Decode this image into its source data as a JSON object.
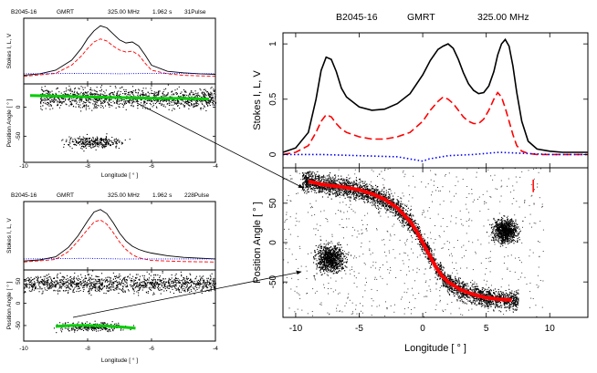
{
  "chart_data": [
    {
      "name": "top-left",
      "type": "line",
      "header": {
        "pulsar": "B2045-16",
        "telescope": "GMRT",
        "freq": "325.00 MHz",
        "period": "1.962 s",
        "pulses": "31Pulse"
      },
      "xlabel": "Longitude [ ° ]",
      "ylabel_top": "Stokes I, L, V",
      "ylabel_bottom": "Position Angle [ ° ]",
      "xlim": [
        -10,
        -4
      ],
      "xticks": [
        "-10",
        "-8",
        "-6",
        "-4"
      ],
      "yticks_bottom": [
        "50",
        "0",
        "-50"
      ],
      "series": [
        {
          "name": "I",
          "color": "#000000",
          "style": "solid",
          "x": [
            -10,
            -9.5,
            -9,
            -8.5,
            -8.2,
            -8,
            -7.8,
            -7.6,
            -7.4,
            -7.2,
            -7,
            -6.8,
            -6.6,
            -6.4,
            -6.2,
            -6,
            -5.5,
            -5,
            -4.5,
            -4
          ],
          "y": [
            0.02,
            0.05,
            0.12,
            0.32,
            0.55,
            0.75,
            0.9,
            1.0,
            0.96,
            0.84,
            0.72,
            0.66,
            0.68,
            0.6,
            0.42,
            0.22,
            0.1,
            0.07,
            0.05,
            0.04
          ]
        },
        {
          "name": "L",
          "color": "#ff0000",
          "style": "dashed",
          "x": [
            -10,
            -9,
            -8.5,
            -8.2,
            -8,
            -7.8,
            -7.6,
            -7.4,
            -7.2,
            -7,
            -6.8,
            -6.6,
            -6.4,
            -6.2,
            -6,
            -5.5,
            -5,
            -4
          ],
          "y": [
            0.0,
            0.06,
            0.22,
            0.4,
            0.55,
            0.68,
            0.74,
            0.7,
            0.6,
            0.52,
            0.48,
            0.5,
            0.42,
            0.26,
            0.12,
            0.05,
            0.02,
            0.0
          ]
        },
        {
          "name": "V",
          "color": "#0000ff",
          "style": "dotted",
          "x": [
            -10,
            -8,
            -7,
            -6,
            -4
          ],
          "y": [
            0.05,
            0.06,
            0.05,
            0.06,
            0.05
          ]
        }
      ],
      "pa_track": {
        "color": "#00cc00",
        "x": [
          -9.8,
          -9,
          -8.2,
          -7.4,
          -6.6,
          -5.8,
          -5,
          -4.2
        ],
        "y": [
          20,
          19,
          18,
          17,
          16,
          15,
          15,
          14
        ]
      },
      "pa_clouds": [
        {
          "x_range": [
            -9.5,
            -4
          ],
          "y": 16,
          "spread": 12
        },
        {
          "x_range": [
            -9.2,
            -6.4
          ],
          "y": -60,
          "spread": 7
        }
      ]
    },
    {
      "name": "bottom-left",
      "type": "line",
      "header": {
        "pulsar": "B2045-16",
        "telescope": "GMRT",
        "freq": "325.00 MHz",
        "period": "1.962 s",
        "pulses": "228Pulse"
      },
      "xlabel": "Longitude [ ° ]",
      "ylabel_top": "Stokes I, L, V",
      "ylabel_bottom": "Position Angle [ ° ]",
      "xlim": [
        -10,
        -4
      ],
      "xticks": [
        "-10",
        "-8",
        "-6",
        "-4"
      ],
      "yticks_bottom": [
        "50",
        "0",
        "-50"
      ],
      "series": [
        {
          "name": "I",
          "color": "#000000",
          "style": "solid",
          "x": [
            -10,
            -9.5,
            -9,
            -8.6,
            -8.3,
            -8,
            -7.8,
            -7.6,
            -7.4,
            -7.2,
            -7,
            -6.8,
            -6.6,
            -6.4,
            -6.2,
            -6,
            -5.5,
            -5,
            -4
          ],
          "y": [
            0.02,
            0.04,
            0.1,
            0.28,
            0.5,
            0.78,
            0.95,
            1.0,
            0.92,
            0.75,
            0.55,
            0.4,
            0.3,
            0.24,
            0.2,
            0.17,
            0.12,
            0.09,
            0.06
          ]
        },
        {
          "name": "L",
          "color": "#ff0000",
          "style": "dashed",
          "x": [
            -10,
            -9,
            -8.6,
            -8.3,
            -8,
            -7.8,
            -7.6,
            -7.4,
            -7.2,
            -7,
            -6.8,
            -6.6,
            -6.4,
            -6,
            -5.5,
            -5,
            -4
          ],
          "y": [
            0.0,
            0.05,
            0.2,
            0.4,
            0.62,
            0.76,
            0.8,
            0.72,
            0.56,
            0.38,
            0.24,
            0.14,
            0.08,
            0.03,
            0.02,
            0.01,
            0.0
          ]
        },
        {
          "name": "V",
          "color": "#0000ff",
          "style": "dotted",
          "x": [
            -10,
            -8,
            -7,
            -6,
            -4
          ],
          "y": [
            0.06,
            0.07,
            0.06,
            0.06,
            0.06
          ]
        }
      ],
      "pa_track": {
        "color": "#00cc00",
        "x": [
          -9,
          -8.5,
          -8,
          -7.5,
          -7,
          -6.5
        ],
        "y": [
          -52,
          -50,
          -50,
          -51,
          -53,
          -56
        ]
      },
      "pa_clouds": [
        {
          "x_range": [
            -10,
            -4
          ],
          "y": 45,
          "spread": 14
        },
        {
          "x_range": [
            -9.4,
            -6.2
          ],
          "y": -52,
          "spread": 7
        }
      ]
    },
    {
      "name": "right",
      "type": "line",
      "header": {
        "pulsar": "B2045-16",
        "telescope": "GMRT",
        "freq": "325.00 MHz"
      },
      "xlabel": "Longitude [ ° ]",
      "ylabel_top": "Stokes I, L, V",
      "ylabel_bottom": "Position Angle [ ° ]",
      "xlim": [
        -11,
        13
      ],
      "xticks": [
        "-10",
        "-5",
        "0",
        "5",
        "10"
      ],
      "yticks_top": [
        "0",
        "0.5",
        "1"
      ],
      "ylim_top": [
        -0.12,
        1.1
      ],
      "yticks_bottom": [
        "50",
        "0",
        "-50"
      ],
      "ylim_bottom": [
        -95,
        95
      ],
      "series": [
        {
          "name": "I",
          "color": "#000000",
          "style": "solid",
          "x": [
            -11,
            -10,
            -9,
            -8.4,
            -8,
            -7.6,
            -7.2,
            -6.8,
            -6.4,
            -6,
            -5,
            -4,
            -3,
            -2,
            -1,
            0,
            0.6,
            1.2,
            1.6,
            2,
            2.4,
            2.8,
            3.2,
            3.6,
            4,
            4.4,
            4.8,
            5.2,
            5.6,
            5.9,
            6.2,
            6.5,
            6.8,
            7.1,
            7.4,
            7.8,
            8.3,
            9,
            10,
            11,
            12,
            13
          ],
          "y": [
            0.02,
            0.06,
            0.2,
            0.5,
            0.76,
            0.88,
            0.86,
            0.75,
            0.6,
            0.52,
            0.43,
            0.4,
            0.41,
            0.46,
            0.55,
            0.72,
            0.85,
            0.95,
            0.98,
            1.0,
            0.96,
            0.86,
            0.74,
            0.64,
            0.58,
            0.55,
            0.56,
            0.62,
            0.75,
            0.9,
            1.0,
            1.04,
            0.98,
            0.8,
            0.56,
            0.3,
            0.12,
            0.05,
            0.03,
            0.02,
            0.02,
            0.02
          ]
        },
        {
          "name": "L",
          "color": "#ff0000",
          "style": "dashed",
          "x": [
            -11,
            -10,
            -9,
            -8.4,
            -8,
            -7.6,
            -7.2,
            -6.8,
            -6.4,
            -6,
            -5,
            -4,
            -3,
            -2,
            -1,
            0,
            0.6,
            1.2,
            1.6,
            2,
            2.4,
            2.8,
            3.2,
            3.6,
            4,
            4.4,
            4.8,
            5.2,
            5.6,
            5.9,
            6.2,
            6.5,
            6.8,
            7.1,
            7.4,
            7.8,
            8.3,
            9,
            10,
            11,
            12,
            13
          ],
          "y": [
            0.0,
            0.02,
            0.08,
            0.2,
            0.3,
            0.36,
            0.34,
            0.28,
            0.23,
            0.2,
            0.16,
            0.14,
            0.14,
            0.16,
            0.2,
            0.3,
            0.4,
            0.48,
            0.52,
            0.5,
            0.46,
            0.4,
            0.34,
            0.3,
            0.28,
            0.28,
            0.32,
            0.4,
            0.5,
            0.56,
            0.52,
            0.42,
            0.3,
            0.18,
            0.08,
            0.03,
            0.01,
            0.0,
            0.0,
            0.0,
            0.0,
            0.0
          ]
        },
        {
          "name": "V",
          "color": "#0000ff",
          "style": "dotted",
          "x": [
            -11,
            -8,
            -5,
            -2,
            -0.5,
            0,
            0.5,
            2,
            4,
            6,
            8,
            10,
            13
          ],
          "y": [
            0.0,
            0.0,
            -0.01,
            -0.02,
            -0.05,
            -0.06,
            -0.04,
            -0.01,
            0.0,
            0.02,
            0.01,
            0.0,
            0.0
          ]
        }
      ],
      "pa_track": {
        "color": "#ff0000",
        "x": [
          -9,
          -8,
          -7,
          -6,
          -5,
          -4,
          -3,
          -2,
          -1,
          -0.5,
          0,
          0.5,
          1,
          1.5,
          2,
          3,
          4,
          5,
          6,
          7
        ],
        "y": [
          78,
          74,
          72,
          70,
          67,
          62,
          55,
          44,
          27,
          15,
          0,
          -15,
          -30,
          -42,
          -50,
          -60,
          -66,
          -70,
          -72,
          -73
        ]
      },
      "pa_clouds": [
        {
          "x_range": [
            -9.5,
            7.5
          ],
          "follow_track": true,
          "spread": 9
        },
        {
          "x_range": [
            -9,
            -5.5
          ],
          "y": -20,
          "spread": 12
        },
        {
          "x_range": [
            5,
            8
          ],
          "y": 15,
          "spread": 10
        }
      ],
      "error_bar": {
        "x": 8.7,
        "y": 72,
        "err": 8,
        "color": "#ff0000"
      }
    }
  ],
  "arrows": [
    {
      "name": "upper-arrow"
    },
    {
      "name": "lower-arrow"
    }
  ]
}
